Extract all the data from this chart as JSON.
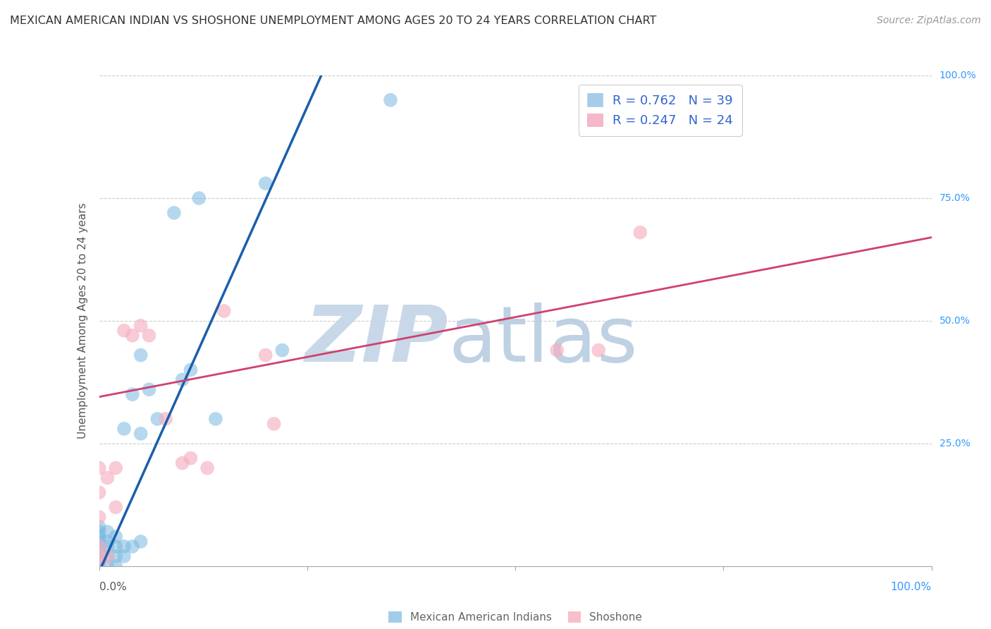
{
  "title": "MEXICAN AMERICAN INDIAN VS SHOSHONE UNEMPLOYMENT AMONG AGES 20 TO 24 YEARS CORRELATION CHART",
  "source": "Source: ZipAtlas.com",
  "ylabel": "Unemployment Among Ages 20 to 24 years",
  "legend1_label": "R = 0.762   N = 39",
  "legend2_label": "R = 0.247   N = 24",
  "legend1_patch_color": "#a8cce8",
  "legend2_patch_color": "#f5b8c8",
  "blue_dot_color": "#7ab8e0",
  "pink_dot_color": "#f5afc0",
  "trend_blue_color": "#1a5faa",
  "trend_pink_color": "#d04070",
  "watermark_zip_color": "#c8d8e8",
  "watermark_atlas_color": "#b8cce0",
  "background_color": "#ffffff",
  "grid_color": "#cccccc",
  "title_color": "#333333",
  "source_color": "#999999",
  "axis_label_color": "#555555",
  "right_tick_color": "#3399ff",
  "legend_text_color": "#3366cc",
  "bottom_legend_color": "#666666",
  "blue_scatter_x": [
    0.0,
    0.0,
    0.0,
    0.0,
    0.0,
    0.0,
    0.0,
    0.0,
    0.0,
    0.0,
    0.0,
    0.0,
    0.01,
    0.01,
    0.01,
    0.01,
    0.01,
    0.02,
    0.02,
    0.02,
    0.02,
    0.03,
    0.03,
    0.03,
    0.04,
    0.04,
    0.05,
    0.05,
    0.05,
    0.06,
    0.07,
    0.09,
    0.1,
    0.11,
    0.12,
    0.14,
    0.2,
    0.22,
    0.35
  ],
  "blue_scatter_y": [
    0.0,
    0.0,
    0.0,
    0.0,
    0.01,
    0.02,
    0.03,
    0.04,
    0.05,
    0.06,
    0.07,
    0.08,
    0.0,
    0.02,
    0.04,
    0.05,
    0.07,
    0.0,
    0.02,
    0.04,
    0.06,
    0.02,
    0.04,
    0.28,
    0.04,
    0.35,
    0.05,
    0.27,
    0.43,
    0.36,
    0.3,
    0.72,
    0.38,
    0.4,
    0.75,
    0.3,
    0.78,
    0.44,
    0.95
  ],
  "pink_scatter_x": [
    0.0,
    0.0,
    0.0,
    0.0,
    0.0,
    0.0,
    0.01,
    0.01,
    0.02,
    0.02,
    0.03,
    0.04,
    0.05,
    0.06,
    0.08,
    0.1,
    0.11,
    0.13,
    0.15,
    0.2,
    0.21,
    0.55,
    0.6,
    0.65
  ],
  "pink_scatter_y": [
    0.0,
    0.02,
    0.04,
    0.1,
    0.15,
    0.2,
    0.02,
    0.18,
    0.12,
    0.2,
    0.48,
    0.47,
    0.49,
    0.47,
    0.3,
    0.21,
    0.22,
    0.2,
    0.52,
    0.43,
    0.29,
    0.44,
    0.44,
    0.68
  ],
  "xlim": [
    0.0,
    1.0
  ],
  "ylim": [
    0.0,
    1.0
  ],
  "blue_line_x": [
    -0.01,
    0.28
  ],
  "blue_line_y": [
    -0.05,
    1.05
  ],
  "pink_line_x": [
    0.0,
    1.0
  ],
  "pink_line_y": [
    0.345,
    0.67
  ]
}
